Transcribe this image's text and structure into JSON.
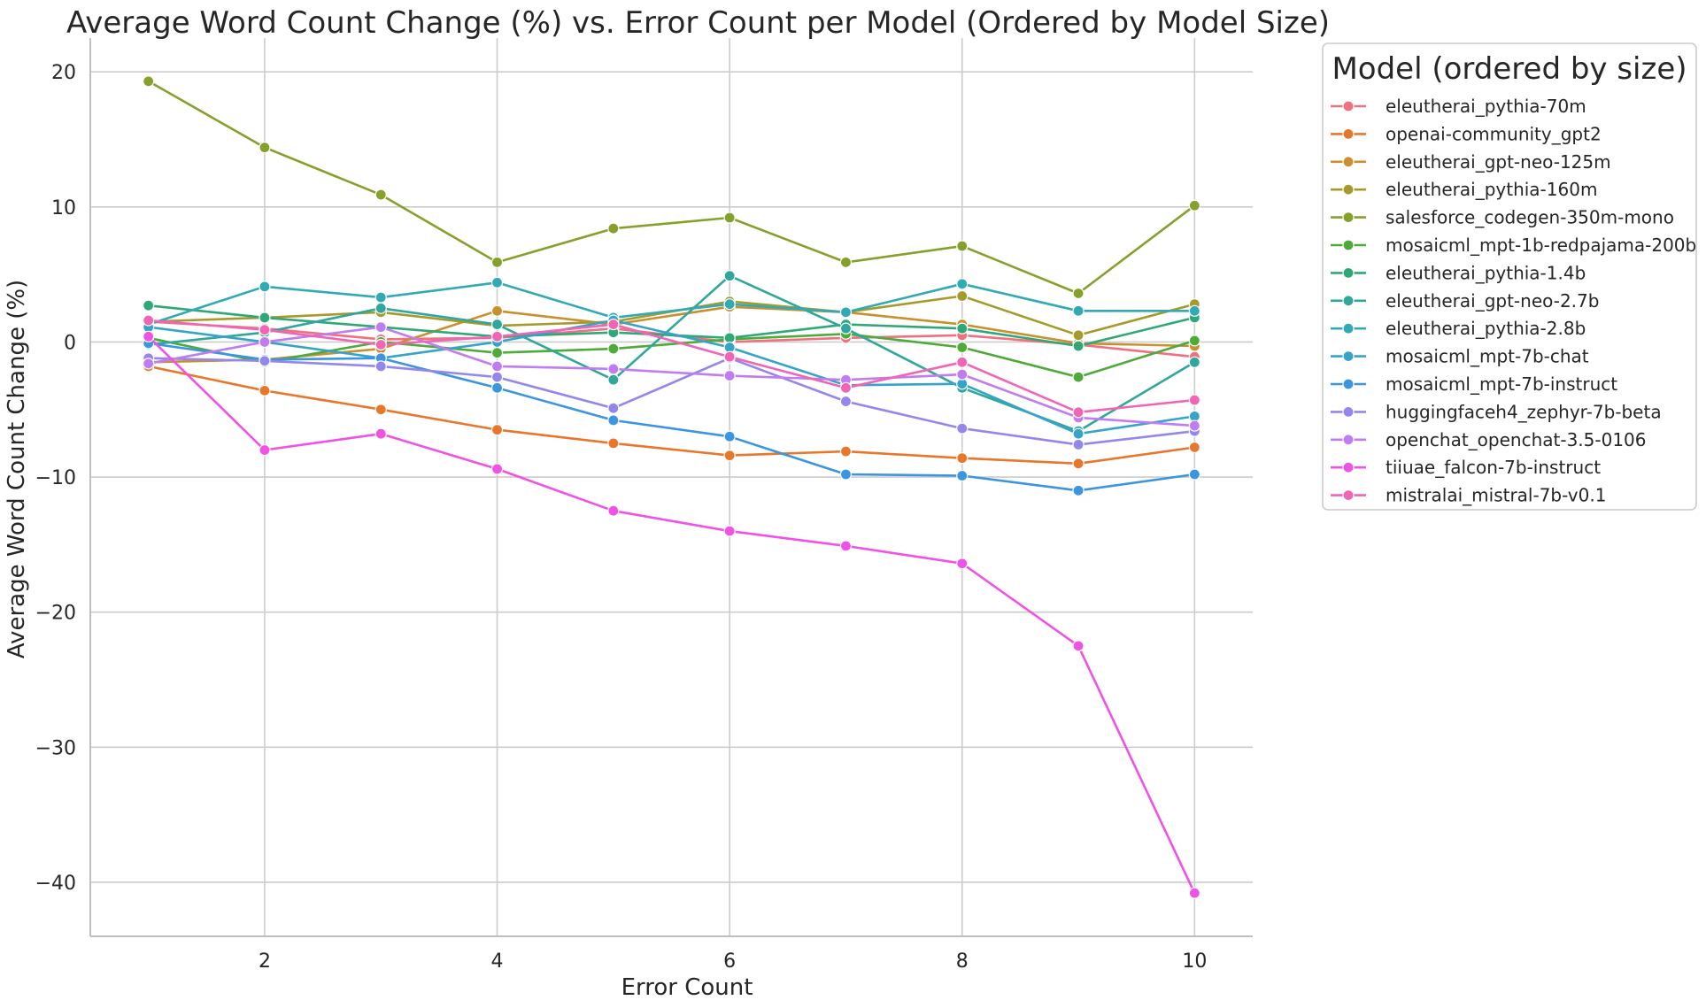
{
  "chart_data": {
    "type": "line",
    "title": "Average Word Count Change (%) vs. Error Count per Model (Ordered by Model Size)",
    "xlabel": "Error Count",
    "ylabel": "Average Word Count Change (%)",
    "xlim": [
      0.5,
      10.5
    ],
    "ylim": [
      -44,
      22.5
    ],
    "xticks": [
      2,
      4,
      6,
      8,
      10
    ],
    "yticks": [
      -40,
      -30,
      -20,
      -10,
      0,
      10,
      20
    ],
    "xtick_labels": [
      "2",
      "4",
      "6",
      "8",
      "10"
    ],
    "ytick_labels": [
      "−40",
      "−30",
      "−20",
      "−10",
      "0",
      "10",
      "20"
    ],
    "grid": true,
    "legend_title": "Model (ordered by size)",
    "legend_position": "outside-right",
    "x": [
      1,
      2,
      3,
      4,
      5,
      6,
      7,
      8,
      9,
      10
    ],
    "series": [
      {
        "name": "eleutherai_pythia-70m",
        "color": "#f0707f",
        "values": [
          1.5,
          1.0,
          0.2,
          0.3,
          1.0,
          0.0,
          0.3,
          0.5,
          -0.2,
          -1.1
        ]
      },
      {
        "name": "openai-community_gpt2",
        "color": "#e8772c",
        "values": [
          -1.8,
          -3.6,
          -5.0,
          -6.5,
          -7.5,
          -8.4,
          -8.1,
          -8.6,
          -9.0,
          -7.8
        ]
      },
      {
        "name": "eleutherai_gpt-neo-125m",
        "color": "#c8902f",
        "values": [
          -1.5,
          -1.3,
          -0.5,
          2.3,
          1.3,
          2.6,
          2.2,
          1.3,
          -0.1,
          -0.3
        ]
      },
      {
        "name": "eleutherai_pythia-160m",
        "color": "#a59b2c",
        "values": [
          1.5,
          1.8,
          2.2,
          1.2,
          1.5,
          3.0,
          2.2,
          3.4,
          0.5,
          2.8
        ]
      },
      {
        "name": "salesforce_codegen-350m-mono",
        "color": "#86a02c",
        "values": [
          19.3,
          14.4,
          10.9,
          5.9,
          8.4,
          9.2,
          5.9,
          7.1,
          3.6,
          10.1
        ]
      },
      {
        "name": "mosaicml_mpt-1b-redpajama-200b",
        "color": "#4eab3a",
        "values": [
          0.3,
          -1.5,
          0.0,
          -0.8,
          -0.5,
          0.2,
          0.6,
          -0.4,
          -2.6,
          0.1
        ]
      },
      {
        "name": "eleutherai_pythia-1.4b",
        "color": "#2fa878",
        "values": [
          2.7,
          1.8,
          1.1,
          0.4,
          0.7,
          0.3,
          1.3,
          1.0,
          -0.3,
          1.8
        ]
      },
      {
        "name": "eleutherai_gpt-neo-2.7b",
        "color": "#30a79a",
        "values": [
          -0.2,
          0.7,
          2.5,
          1.3,
          -2.8,
          4.9,
          1.0,
          -3.4,
          -6.6,
          -1.5
        ]
      },
      {
        "name": "eleutherai_pythia-2.8b",
        "color": "#32aab5",
        "values": [
          1.3,
          4.1,
          3.3,
          4.4,
          1.8,
          2.8,
          2.2,
          4.3,
          2.3,
          2.3
        ]
      },
      {
        "name": "mosaicml_mpt-7b-chat",
        "color": "#36a4c8",
        "values": [
          1.1,
          0.0,
          -1.2,
          0.0,
          1.6,
          -0.4,
          -3.2,
          -3.1,
          -6.8,
          -5.5
        ]
      },
      {
        "name": "mosaicml_mpt-7b-instruct",
        "color": "#3b95e0",
        "values": [
          -0.1,
          -1.3,
          -1.2,
          -3.4,
          -5.8,
          -7.0,
          -9.8,
          -9.9,
          -11.0,
          -9.8
        ]
      },
      {
        "name": "huggingfaceh4_zephyr-7b-beta",
        "color": "#9487ec",
        "values": [
          -1.2,
          -1.4,
          -1.8,
          -2.6,
          -4.9,
          -1.2,
          -4.4,
          -6.4,
          -7.6,
          -6.6
        ]
      },
      {
        "name": "openchat_openchat-3.5-0106",
        "color": "#c07cf0",
        "values": [
          -1.6,
          0.0,
          1.1,
          -1.8,
          -2.0,
          -2.5,
          -2.8,
          -2.4,
          -5.6,
          -6.2
        ]
      },
      {
        "name": "tiiuae_falcon-7b-instruct",
        "color": "#f052e6",
        "values": [
          0.4,
          -8.0,
          -6.8,
          -9.4,
          -12.5,
          -14.0,
          -15.1,
          -16.4,
          -22.5,
          -40.8
        ]
      },
      {
        "name": "mistralai_mistral-7b-v0.1",
        "color": "#f065b5",
        "values": [
          1.6,
          0.9,
          -0.2,
          0.4,
          1.3,
          -1.1,
          -3.4,
          -1.5,
          -5.2,
          -4.3
        ]
      }
    ]
  }
}
